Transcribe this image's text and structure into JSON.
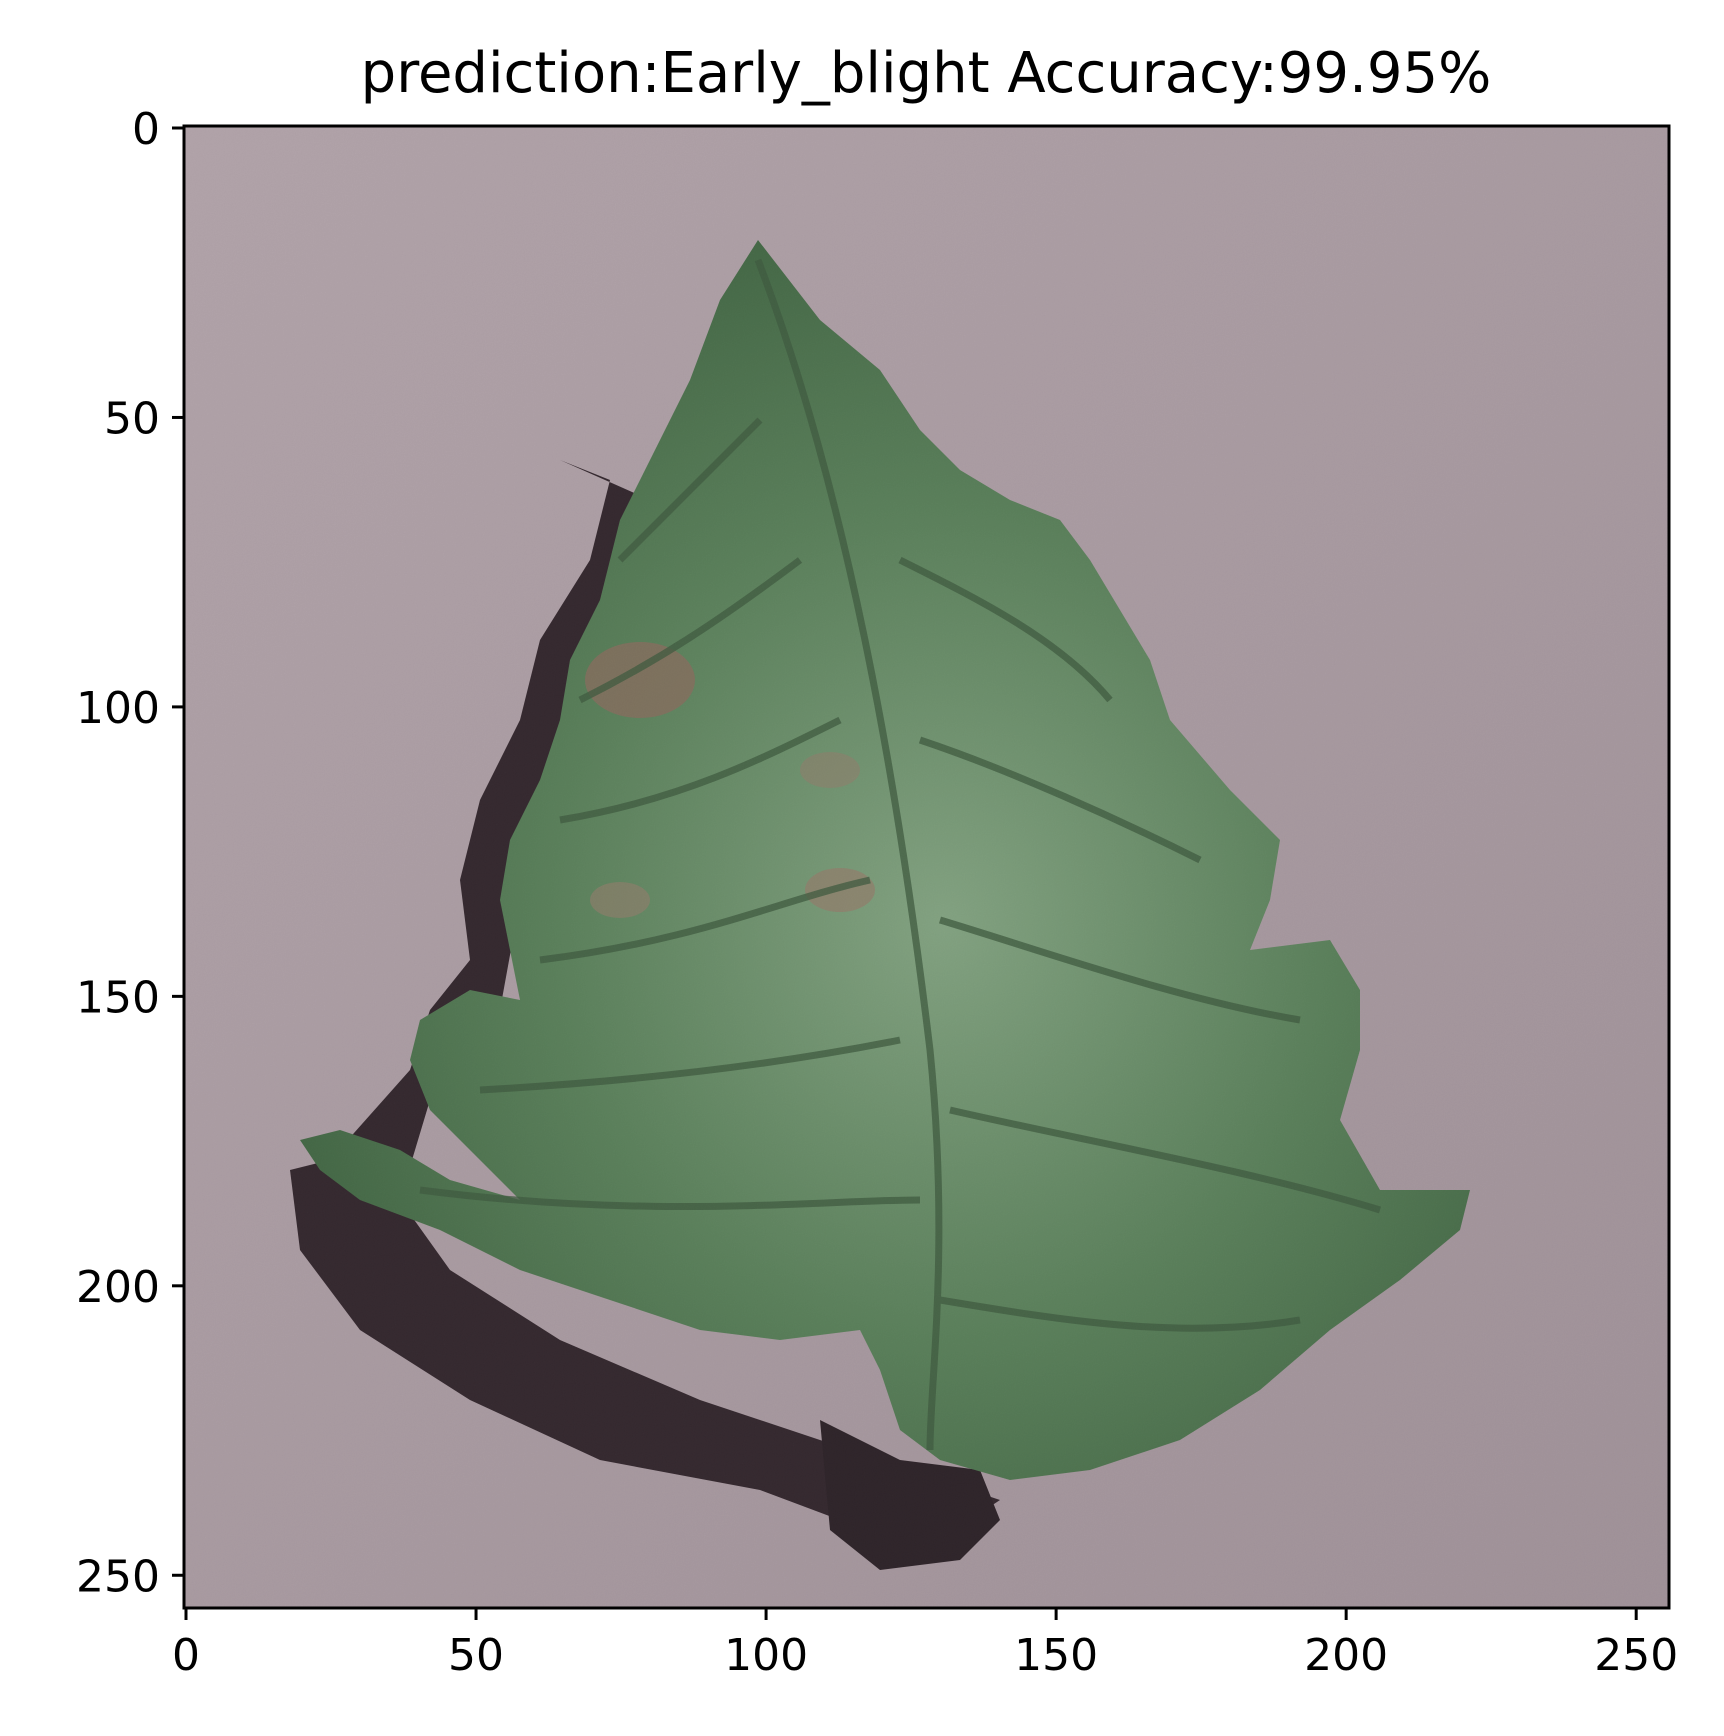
{
  "figure": {
    "title": "prediction:Early_blight Accuracy:99.95%",
    "image_description_icon": "potato-leaf-image",
    "x_axis": {
      "ticks": [
        "0",
        "50",
        "100",
        "150",
        "200",
        "250"
      ],
      "tick_values": [
        0,
        50,
        100,
        150,
        200,
        250
      ],
      "range": [
        0,
        256
      ]
    },
    "y_axis": {
      "ticks": [
        "0",
        "50",
        "100",
        "150",
        "200",
        "250"
      ],
      "tick_values": [
        0,
        50,
        100,
        150,
        200,
        250
      ],
      "range": [
        0,
        256
      ]
    },
    "colors": {
      "background": "#a99aa1",
      "leaf": "#3e6b41",
      "leaf_light": "#6c9a6e",
      "leaf_dark": "#234a28",
      "shadow": "#1a0f14",
      "lesion": "#8b6a4e"
    }
  }
}
